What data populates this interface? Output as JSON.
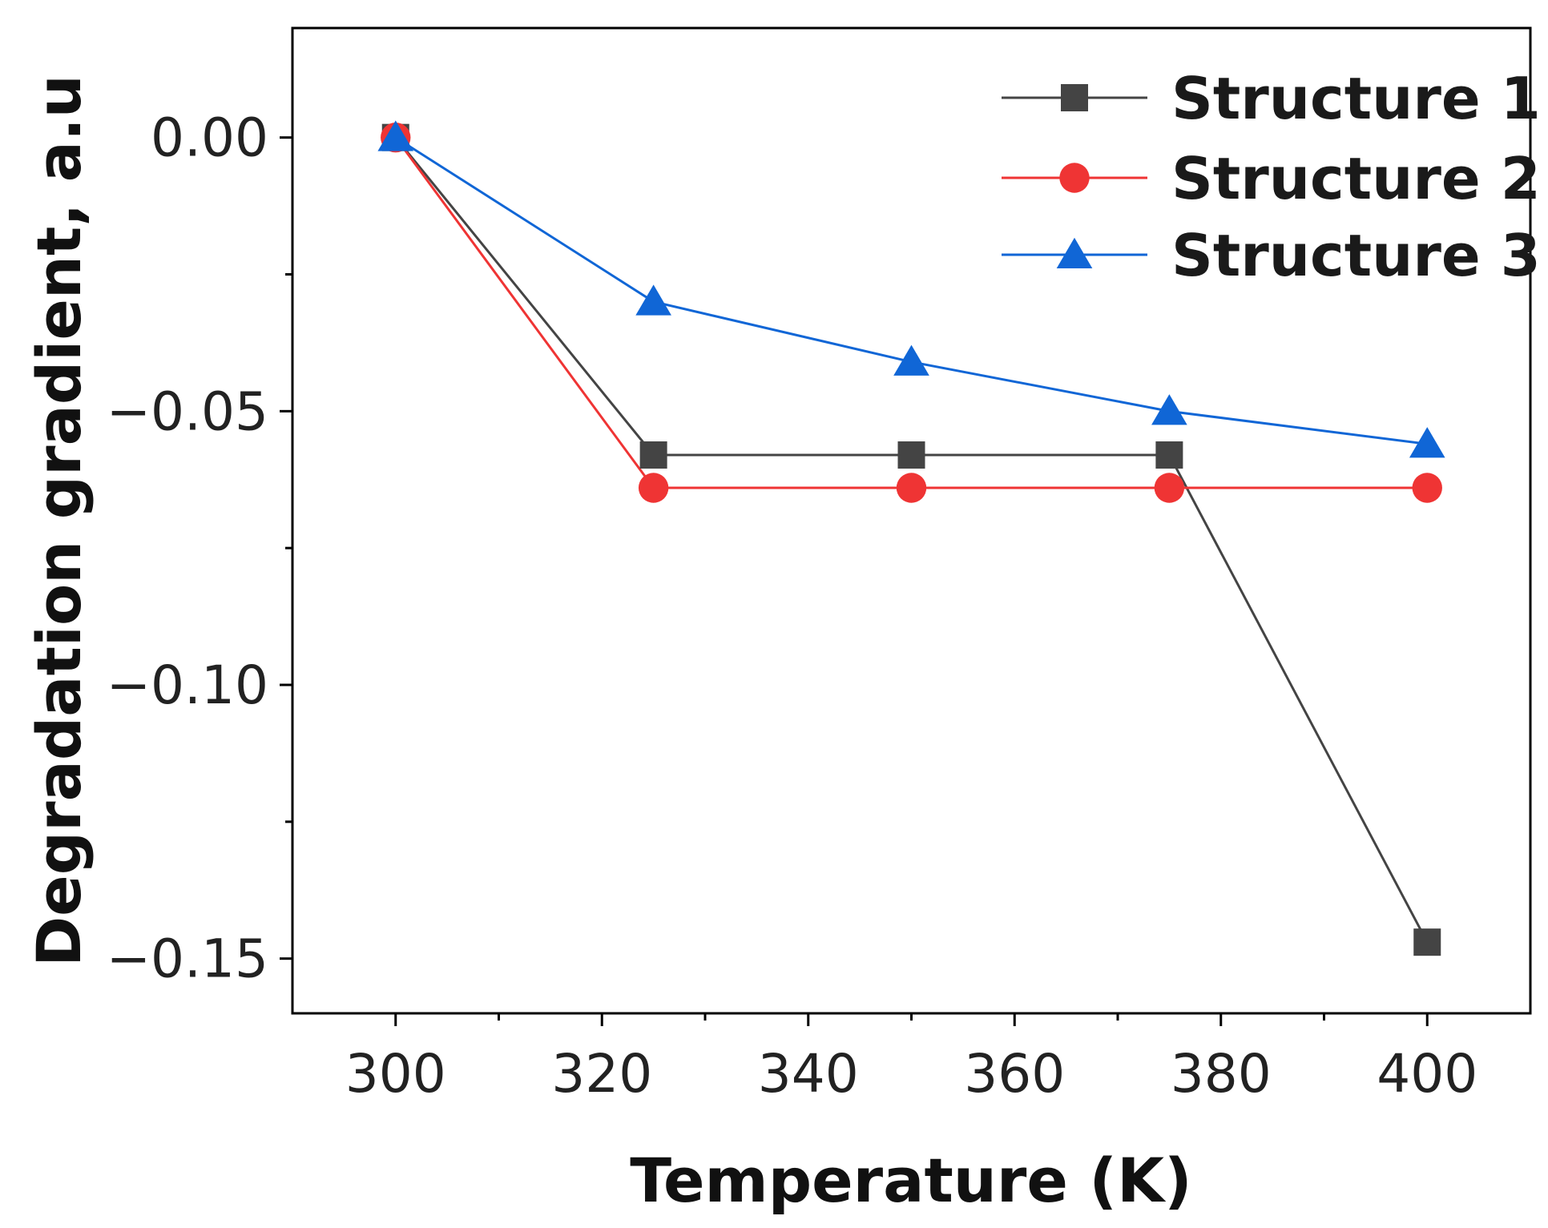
{
  "chart_data": {
    "type": "line",
    "title": "",
    "xlabel": "Temperature (K)",
    "ylabel": "Degradation gradient, a.u",
    "xlim": [
      290,
      410
    ],
    "ylim": [
      -0.16,
      0.02
    ],
    "x_ticks": [
      300,
      320,
      340,
      360,
      380,
      400
    ],
    "x_tick_labels": [
      "300",
      "320",
      "340",
      "360",
      "380",
      "400"
    ],
    "y_ticks": [
      0.0,
      -0.05,
      -0.1,
      -0.15
    ],
    "y_tick_labels": [
      "0.00",
      "−0.05",
      "−0.10",
      "−0.15"
    ],
    "grid": false,
    "legend_position": "top-right",
    "series": [
      {
        "name": "Structure 1",
        "color": "#444444",
        "marker": "square",
        "x": [
          300,
          325,
          350,
          375,
          400
        ],
        "y": [
          0.0,
          -0.058,
          -0.058,
          -0.058,
          -0.147
        ]
      },
      {
        "name": "Structure 2",
        "color": "#ef3434",
        "marker": "circle",
        "x": [
          300,
          325,
          350,
          375,
          400
        ],
        "y": [
          0.0,
          -0.064,
          -0.064,
          -0.064,
          -0.064
        ]
      },
      {
        "name": "Structure 3",
        "color": "#1066d6",
        "marker": "triangle",
        "x": [
          300,
          325,
          350,
          375,
          400
        ],
        "y": [
          0.0,
          -0.03,
          -0.041,
          -0.05,
          -0.056
        ]
      }
    ]
  }
}
